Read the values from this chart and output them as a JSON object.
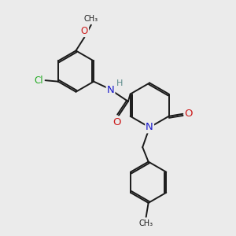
{
  "bg_color": "#ebebeb",
  "bond_color": "#1a1a1a",
  "atom_colors": {
    "N": "#1a1acc",
    "O": "#cc1a1a",
    "Cl": "#22aa22",
    "C": "#1a1a1a",
    "H": "#5a8a8a"
  },
  "font_size": 8.5,
  "line_width": 1.4,
  "double_sep": 0.07
}
